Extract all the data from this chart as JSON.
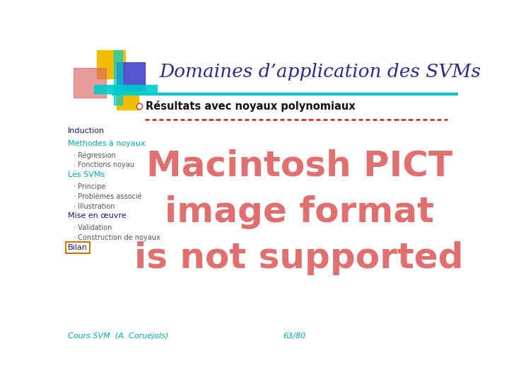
{
  "title": "Domaines d’application des SVMs",
  "title_color": "#2b2b8a",
  "bg_color": "#ffffff",
  "bullet_text": "Résultats avec noyaux polynomiaux",
  "sidebar_items": [
    {
      "text": "Induction",
      "level": 0,
      "color": "#1a1a5c"
    },
    {
      "text": "Méthodes à noyaux",
      "level": 0,
      "color": "#00aaaa"
    },
    {
      "text": "· Régression",
      "level": 1,
      "color": "#555555"
    },
    {
      "text": "· Fonctions noyau",
      "level": 1,
      "color": "#555555"
    },
    {
      "text": "Les SVMs",
      "level": 0,
      "color": "#00aaaa"
    },
    {
      "text": "· Principe",
      "level": 1,
      "color": "#555555"
    },
    {
      "text": "· Problèmes associé",
      "level": 1,
      "color": "#555555"
    },
    {
      "text": "· Illustration",
      "level": 1,
      "color": "#555555"
    },
    {
      "text": "Mise en œuvre",
      "level": 0,
      "color": "#1a1a5c"
    },
    {
      "text": "· Validation",
      "level": 1,
      "color": "#555555"
    },
    {
      "text": "· Construction de noyaux",
      "level": 1,
      "color": "#555555"
    },
    {
      "text": "Bilan",
      "level": 0,
      "color": "#1a1a5c",
      "boxed": true
    }
  ],
  "footer_left": "Cours SVM  (A. Coruéjols)",
  "footer_right": "63/80",
  "footer_color": "#00aaaa",
  "pict_text_lines": [
    "Macintosh PICT",
    "image format",
    "is not supported"
  ],
  "pict_color": "#e07070",
  "header_line_color": "#00cccc",
  "logo": {
    "yellow": "#f0c000",
    "blue": "#4444cc",
    "red_pink": "#dd6666",
    "cyan": "#00cccc",
    "yellow2": "#f0c000"
  }
}
